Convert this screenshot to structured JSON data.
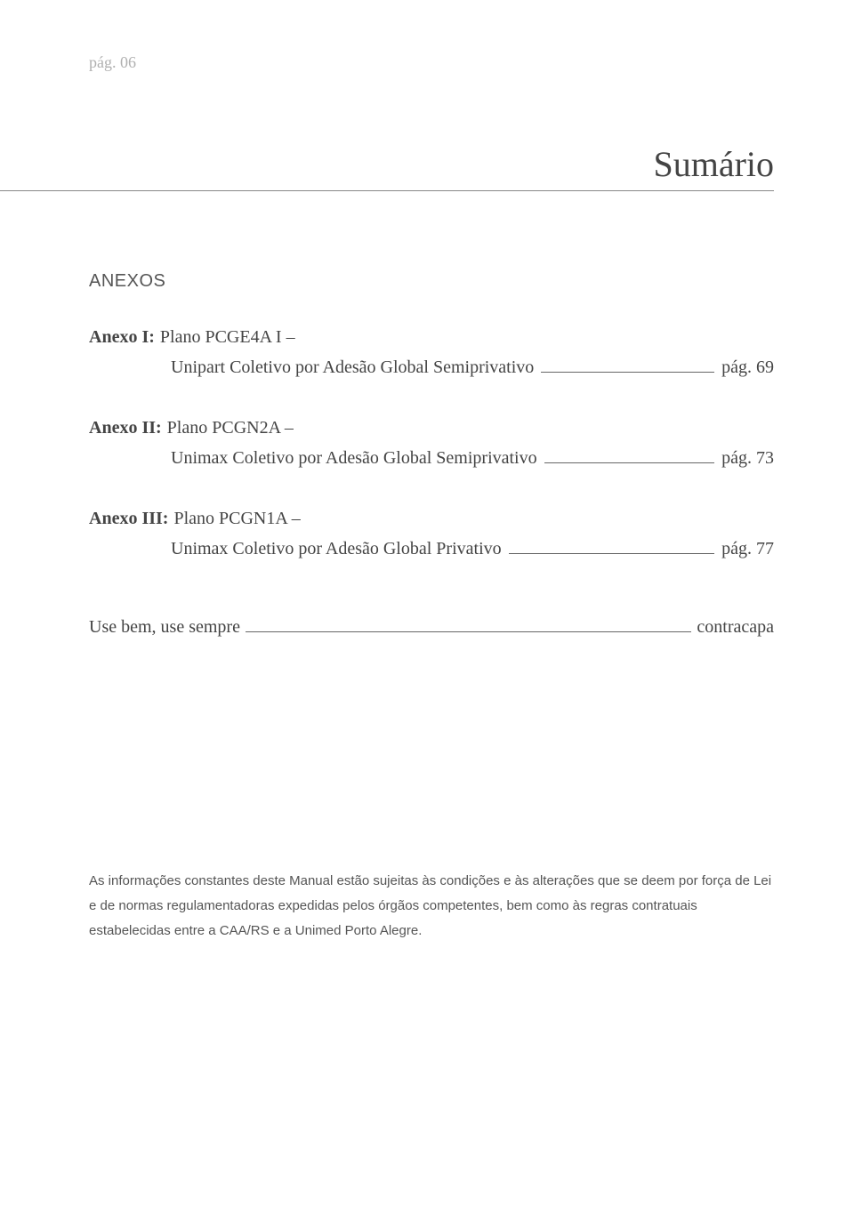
{
  "page_marker": "pág. 06",
  "title": "Sumário",
  "section_heading": "ANEXOS",
  "toc": [
    {
      "label": "Anexo I:",
      "line1": "Plano PCGE4A I –",
      "line2": "Unipart Coletivo por Adesão Global Semiprivativo",
      "page": "pág. 69"
    },
    {
      "label": "Anexo II:",
      "line1": "Plano PCGN2A –",
      "line2": "Unimax Coletivo por Adesão Global Semiprivativo",
      "page": "pág. 73"
    },
    {
      "label": "Anexo III:",
      "line1": "Plano PCGN1A –",
      "line2": "Unimax Coletivo por Adesão Global Privativo",
      "page": "pág. 77"
    }
  ],
  "use_line": {
    "label": "Use bem, use sempre",
    "value": "contracapa"
  },
  "footer_note": "As informações constantes deste Manual estão sujeitas às condições e às alterações que se deem por força de Lei e de normas regulamentadoras expedidas pelos órgãos competentes, bem como às regras contratuais estabelecidas entre a CAA/RS e a Unimed Porto Alegre."
}
